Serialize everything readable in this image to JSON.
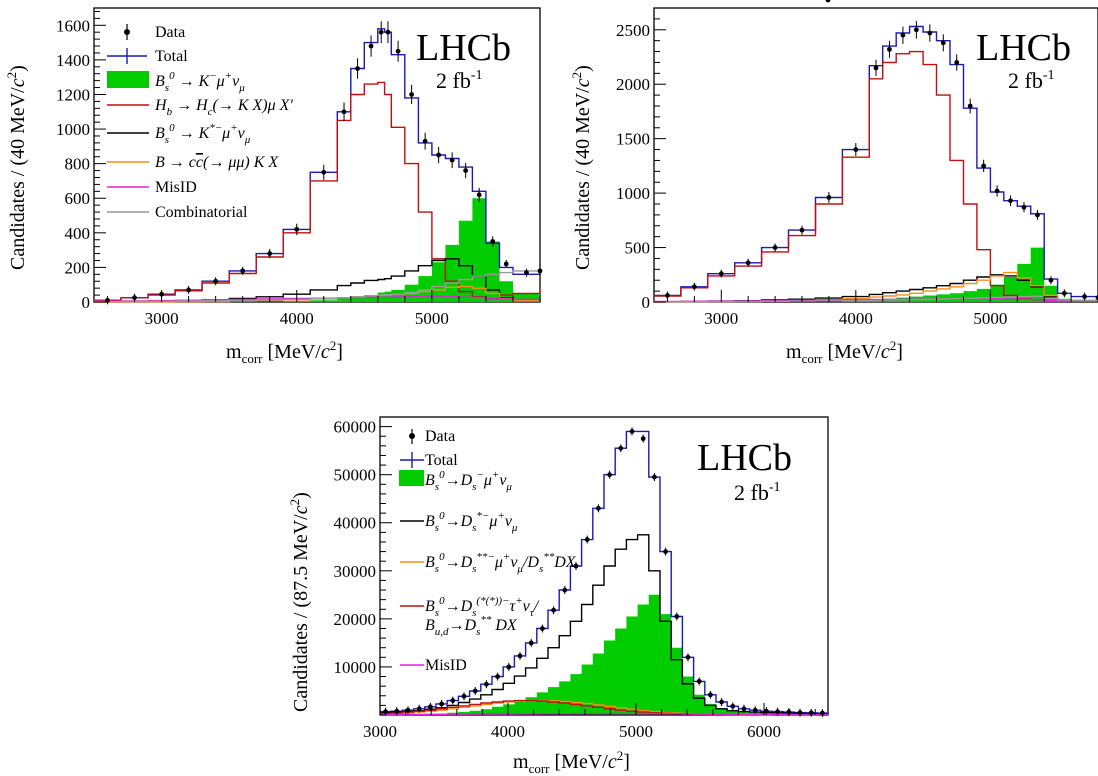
{
  "chart_data": [
    {
      "type": "histogram",
      "panel": "top-left",
      "xlabel": "m_corr [MeV/c²]",
      "ylabel": "Candidates / (40 MeV/c²)",
      "xlim": [
        2500,
        5800
      ],
      "ylim": [
        0,
        1700
      ],
      "xticks": [
        3000,
        4000,
        5000
      ],
      "yticks": [
        0,
        200,
        400,
        600,
        800,
        1000,
        1200,
        1400,
        1600
      ],
      "experiment_label": "LHCb",
      "luminosity_label": "2 fb-1",
      "legend_position": "top-left",
      "legend": [
        "Data",
        "Total",
        "B_s^0 → K^− μ^+ ν_μ",
        "H_b → H_c(→ K X)μ X'",
        "B_s^0 → K^{*−} μ^+ ν_μ",
        "B → c c̄(→ μμ) K X",
        "MisID",
        "Combinatorial"
      ],
      "x_nodes": [
        2500,
        2700,
        2900,
        3100,
        3300,
        3500,
        3700,
        3900,
        4100,
        4300,
        4400,
        4500,
        4600,
        4650,
        4700,
        4800,
        4900,
        5000,
        5100,
        5200,
        5300,
        5400,
        5500,
        5600,
        5800
      ],
      "series": [
        {
          "name": "Data",
          "kind": "points",
          "color": "#000000",
          "y": [
            10,
            25,
            45,
            70,
            120,
            180,
            280,
            420,
            750,
            1100,
            1350,
            1480,
            1560,
            1560,
            1450,
            1200,
            930,
            850,
            820,
            760,
            620,
            350,
            220,
            170,
            180
          ]
        },
        {
          "name": "Total",
          "kind": "step",
          "color": "#1a1ab8",
          "y": [
            10,
            25,
            45,
            70,
            120,
            180,
            280,
            420,
            750,
            1100,
            1350,
            1500,
            1580,
            1560,
            1430,
            1180,
            920,
            850,
            830,
            780,
            640,
            340,
            200,
            160,
            180
          ]
        },
        {
          "name": "B_s^0 → K^− μ^+ ν_μ",
          "kind": "filled",
          "color": "#00cc00",
          "y": [
            0,
            0,
            0,
            0,
            0,
            0,
            0,
            5,
            10,
            20,
            30,
            40,
            55,
            60,
            70,
            100,
            150,
            230,
            330,
            470,
            600,
            350,
            120,
            50,
            20
          ]
        },
        {
          "name": "H_b → H_c(→ K X)μ X'",
          "kind": "step",
          "color": "#c01010",
          "y": [
            10,
            25,
            40,
            65,
            110,
            165,
            260,
            400,
            700,
            1050,
            1200,
            1260,
            1270,
            1200,
            1010,
            800,
            520,
            250,
            120,
            60,
            30,
            20,
            40,
            50,
            80
          ]
        },
        {
          "name": "B_s^0 → K^{*−} μ^+ ν_μ",
          "kind": "step",
          "color": "#000000",
          "y": [
            2,
            3,
            5,
            8,
            12,
            20,
            30,
            45,
            70,
            95,
            110,
            125,
            130,
            135,
            150,
            180,
            210,
            240,
            250,
            210,
            150,
            70,
            25,
            10,
            5
          ]
        },
        {
          "name": "B → c c̄(→ μμ) K X",
          "kind": "step",
          "color": "#ff8c1a",
          "y": [
            0,
            0,
            1,
            2,
            3,
            5,
            8,
            12,
            18,
            25,
            30,
            35,
            38,
            40,
            45,
            50,
            60,
            70,
            85,
            90,
            80,
            50,
            20,
            10,
            5
          ]
        },
        {
          "name": "MisID",
          "kind": "step",
          "color": "#e020e0",
          "y": [
            5,
            6,
            8,
            10,
            12,
            15,
            18,
            20,
            22,
            25,
            26,
            27,
            28,
            28,
            29,
            30,
            30,
            30,
            30,
            28,
            26,
            22,
            18,
            15,
            12
          ]
        },
        {
          "name": "Combinatorial",
          "kind": "step",
          "color": "#999999",
          "y": [
            2,
            3,
            4,
            5,
            7,
            9,
            12,
            15,
            20,
            25,
            30,
            35,
            40,
            42,
            45,
            55,
            70,
            90,
            110,
            130,
            150,
            160,
            170,
            180,
            190
          ]
        }
      ]
    },
    {
      "type": "histogram",
      "panel": "top-right",
      "xlabel": "m_corr [MeV/c²]",
      "ylabel": "Candidates / (40 MeV/c²)",
      "xlim": [
        2500,
        5800
      ],
      "ylim": [
        0,
        2700
      ],
      "xticks": [
        3000,
        4000,
        5000
      ],
      "yticks": [
        0,
        500,
        1000,
        1500,
        2000,
        2500
      ],
      "experiment_label": "LHCb",
      "luminosity_label": "2 fb-1",
      "x_nodes": [
        2500,
        2700,
        2900,
        3100,
        3300,
        3500,
        3700,
        3900,
        4100,
        4200,
        4300,
        4400,
        4500,
        4600,
        4700,
        4800,
        4900,
        5000,
        5100,
        5200,
        5300,
        5400,
        5500,
        5600,
        5800
      ],
      "series": [
        {
          "name": "Data",
          "kind": "points",
          "color": "#000000",
          "y": [
            60,
            140,
            260,
            360,
            500,
            660,
            960,
            1400,
            2150,
            2320,
            2450,
            2500,
            2470,
            2380,
            2200,
            1800,
            1250,
            1020,
            930,
            870,
            800,
            200,
            80,
            50,
            40
          ]
        },
        {
          "name": "Total",
          "kind": "step",
          "color": "#1a1ab8",
          "y": [
            60,
            140,
            260,
            360,
            500,
            660,
            960,
            1400,
            2170,
            2350,
            2470,
            2530,
            2480,
            2400,
            2180,
            1780,
            1230,
            1010,
            930,
            880,
            810,
            210,
            80,
            50,
            40
          ]
        },
        {
          "name": "B_s^0 → K^− μ^+ ν_μ",
          "kind": "filled",
          "color": "#00cc00",
          "y": [
            0,
            0,
            0,
            0,
            0,
            0,
            0,
            10,
            20,
            30,
            40,
            50,
            60,
            70,
            80,
            100,
            120,
            160,
            230,
            350,
            500,
            150,
            30,
            10,
            5
          ]
        },
        {
          "name": "H_b → H_c(→ K X)μ X'",
          "kind": "step",
          "color": "#c01010",
          "y": [
            55,
            130,
            240,
            330,
            460,
            610,
            900,
            1330,
            2050,
            2200,
            2280,
            2300,
            2180,
            1900,
            1300,
            900,
            480,
            150,
            60,
            30,
            20,
            15,
            15,
            15,
            15
          ]
        },
        {
          "name": "B_s^0 → K^{*−} μ^+ ν_μ",
          "kind": "step",
          "color": "#000000",
          "y": [
            3,
            5,
            8,
            12,
            18,
            26,
            36,
            50,
            70,
            85,
            100,
            115,
            130,
            150,
            170,
            200,
            230,
            250,
            240,
            200,
            140,
            50,
            20,
            10,
            5
          ]
        },
        {
          "name": "B → c c̄(→ μμ) K X",
          "kind": "step",
          "color": "#ff8c1a",
          "y": [
            1,
            2,
            4,
            6,
            10,
            15,
            20,
            30,
            45,
            55,
            65,
            80,
            100,
            120,
            140,
            170,
            200,
            240,
            270,
            220,
            150,
            60,
            20,
            10,
            5
          ]
        },
        {
          "name": "MisID",
          "kind": "step",
          "color": "#e020e0",
          "y": [
            5,
            6,
            8,
            10,
            12,
            15,
            18,
            20,
            22,
            24,
            25,
            26,
            27,
            28,
            28,
            29,
            30,
            30,
            28,
            26,
            22,
            16,
            12,
            10,
            8
          ]
        },
        {
          "name": "Combinatorial",
          "kind": "step",
          "color": "#999999",
          "y": [
            2,
            3,
            4,
            5,
            6,
            8,
            10,
            12,
            15,
            17,
            20,
            22,
            25,
            28,
            30,
            34,
            38,
            42,
            46,
            50,
            52,
            30,
            20,
            15,
            12
          ]
        }
      ]
    },
    {
      "type": "histogram",
      "panel": "bottom",
      "xlabel": "m_corr [MeV/c²]",
      "ylabel": "Candidates / (87.5 MeV/c²)",
      "xlim": [
        3000,
        6500
      ],
      "ylim": [
        0,
        62000
      ],
      "xticks": [
        3000,
        4000,
        5000,
        6000
      ],
      "yticks": [
        10000,
        20000,
        30000,
        40000,
        50000,
        60000
      ],
      "experiment_label": "LHCb",
      "luminosity_label": "2 fb-1",
      "legend_position": "top-left",
      "legend": [
        "Data",
        "Total",
        "B_s^0→D_s^−μ^+ν_μ",
        "B_s^0→D_s^{*−}μ^+ν_μ",
        "B_s^0→D_s^{**−}μ^+ν_μ/D_s^{**}DX",
        "B_s^0→D_s^{(*(*))−}τ^+ν_τ/ B_{u,d}→D_s^{**}DX",
        "MisID"
      ],
      "x_nodes": [
        3000,
        3087.5,
        3175,
        3262.5,
        3350,
        3437.5,
        3525,
        3612.5,
        3700,
        3787.5,
        3875,
        3962.5,
        4050,
        4137.5,
        4225,
        4312.5,
        4400,
        4487.5,
        4575,
        4662.5,
        4750,
        4837.5,
        4925,
        5012.5,
        5100,
        5187.5,
        5275,
        5362.5,
        5450,
        5537.5,
        5625,
        5712.5,
        5800,
        5887.5,
        5975,
        6062.5,
        6150,
        6237.5,
        6325,
        6412.5,
        6500
      ],
      "series": [
        {
          "name": "Data",
          "kind": "points",
          "color": "#000000",
          "y": [
            700,
            800,
            1000,
            1300,
            1700,
            2300,
            3000,
            3900,
            5000,
            6400,
            8000,
            10000,
            12300,
            15000,
            18000,
            21800,
            26000,
            31000,
            36500,
            43000,
            50000,
            55500,
            59000,
            57500,
            49500,
            34000,
            20500,
            12000,
            7000,
            4200,
            2700,
            1800,
            1300,
            1000,
            800,
            700,
            600,
            500,
            450,
            400
          ]
        },
        {
          "name": "Total",
          "kind": "step",
          "color": "#1a1ab8",
          "y": [
            700,
            800,
            1000,
            1300,
            1700,
            2300,
            3000,
            3900,
            5000,
            6400,
            8000,
            10000,
            12300,
            15000,
            18000,
            21800,
            26000,
            31000,
            36500,
            43000,
            50000,
            55500,
            59000,
            59000,
            49500,
            34000,
            20500,
            12000,
            7000,
            4200,
            2700,
            1800,
            1300,
            1000,
            800,
            700,
            600,
            500,
            450,
            400
          ]
        },
        {
          "name": "B_s^0→D_s^−μ^+ν_μ",
          "kind": "filled",
          "color": "#00cc00",
          "y": [
            0,
            0,
            50,
            100,
            200,
            300,
            450,
            650,
            900,
            1200,
            1700,
            2200,
            2900,
            3700,
            4700,
            5800,
            7000,
            8500,
            10500,
            12800,
            15500,
            18000,
            20500,
            23000,
            25000,
            21000,
            14000,
            8000,
            4200,
            2300,
            1400,
            1000,
            800,
            700,
            600,
            500,
            450,
            400,
            350,
            300
          ]
        },
        {
          "name": "B_s^0→D_s^{*−}μ^+ν_μ",
          "kind": "step",
          "color": "#000000",
          "y": [
            500,
            600,
            700,
            900,
            1200,
            1500,
            2000,
            2600,
            3300,
            4200,
            5300,
            6600,
            8100,
            9800,
            11800,
            14000,
            16500,
            19500,
            23000,
            27000,
            31000,
            34500,
            36500,
            37500,
            30000,
            19500,
            11500,
            6500,
            3500,
            2000,
            1300,
            900,
            700,
            600,
            500,
            450,
            400,
            350,
            300,
            250
          ]
        },
        {
          "name": "B_s^0→D_s^{**−}μ^+ν_μ/D_s^{**}DX",
          "kind": "step",
          "color": "#ff8c1a",
          "y": [
            200,
            300,
            400,
            600,
            800,
            1000,
            1300,
            1600,
            1900,
            2200,
            2500,
            2700,
            2900,
            3000,
            3000,
            2950,
            2800,
            2600,
            2400,
            2100,
            1800,
            1500,
            1200,
            900,
            700,
            500,
            400,
            300,
            250,
            200,
            150,
            120,
            100,
            80,
            60,
            50,
            40,
            30,
            20,
            15
          ]
        },
        {
          "name": "B_s^0→D_s^{(*(*))−}τ^+ν_τ/ B_{u,d}→D_s^{**}DX",
          "kind": "step",
          "color": "#c01010",
          "y": [
            300,
            400,
            600,
            800,
            1000,
            1300,
            1600,
            1900,
            2200,
            2500,
            2700,
            2900,
            3000,
            3000,
            2900,
            2700,
            2500,
            2200,
            1900,
            1600,
            1300,
            1000,
            800,
            600,
            450,
            350,
            250,
            200,
            150,
            120,
            100,
            80,
            60,
            50,
            40,
            30,
            25,
            20,
            15,
            10
          ]
        },
        {
          "name": "MisID",
          "kind": "step",
          "color": "#e020e0",
          "y": [
            100,
            110,
            120,
            130,
            140,
            150,
            160,
            170,
            180,
            190,
            200,
            210,
            220,
            230,
            240,
            250,
            260,
            270,
            280,
            290,
            300,
            300,
            300,
            290,
            280,
            270,
            250,
            230,
            210,
            190,
            170,
            150,
            130,
            120,
            110,
            100,
            90,
            80,
            70,
            60
          ]
        }
      ]
    }
  ],
  "labels": {
    "lhcb": "LHCb",
    "lumi_base": "2 fb",
    "lumi_exp": "-1",
    "xlabel_main": "m",
    "xlabel_sub": "corr",
    "xlabel_unit": " [MeV/",
    "xlabel_c": "c",
    "xlabel_exp": "2",
    "xlabel_close": "]",
    "ylabel_40": "Candidates / (40 MeV/",
    "ylabel_875": "Candidates / (87.5 MeV/",
    "ylabel_c": "c",
    "ylabel_exp": "2",
    "ylabel_close": ")",
    "leg_data": "Data",
    "leg_total": "Total",
    "leg_misid": "MisID",
    "leg_comb": "Combinatorial"
  },
  "colors": {
    "data": "#000000",
    "total": "#1a1ab8",
    "signal": "#00cc00",
    "hb": "#c01010",
    "kstar": "#000000",
    "ccbar": "#ff8c1a",
    "misid": "#e020e0",
    "comb": "#999999"
  }
}
